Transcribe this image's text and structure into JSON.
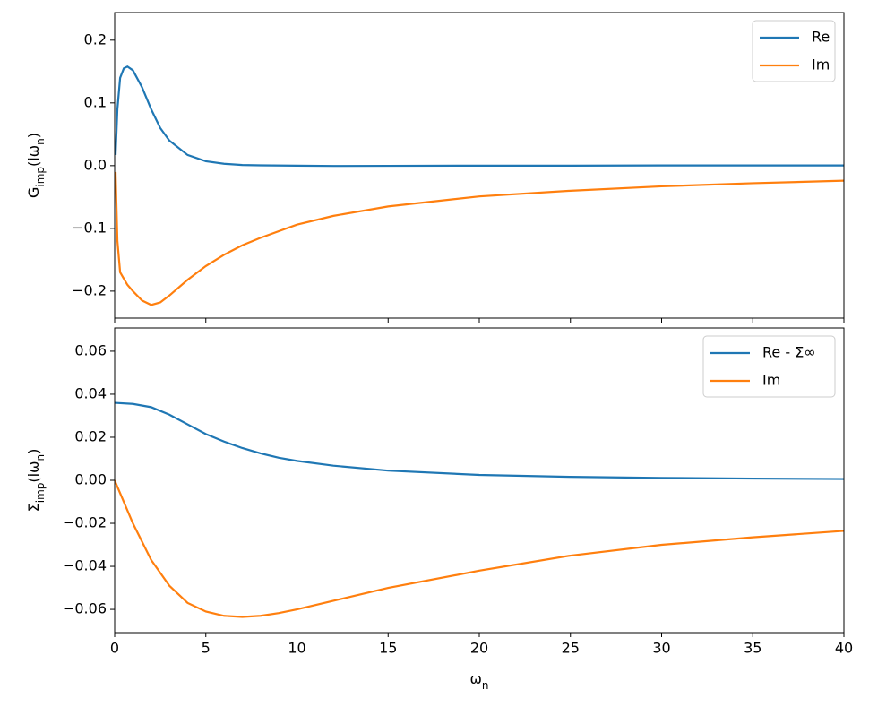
{
  "chart_data": [
    {
      "type": "line",
      "ylabel": [
        {
          "text": "G"
        },
        {
          "text": "imp",
          "sub": true
        },
        {
          "text": "(iω"
        },
        {
          "text": "n",
          "sub": true
        },
        {
          "text": ")"
        }
      ],
      "x": [
        0.05,
        0.15,
        0.3,
        0.5,
        0.7,
        1,
        1.5,
        2,
        2.5,
        3,
        4,
        5,
        6,
        7,
        8,
        10,
        12,
        15,
        20,
        25,
        30,
        35,
        40
      ],
      "series": [
        {
          "name": "Re",
          "color": "#1f77b4",
          "values": [
            0.017,
            0.09,
            0.14,
            0.155,
            0.158,
            0.152,
            0.125,
            0.09,
            0.06,
            0.04,
            0.017,
            0.007,
            0.003,
            0.001,
            0.0005,
            0,
            -0.0005,
            -0.0003,
            0,
            0,
            0.0003,
            0.0003,
            0.0003
          ]
        },
        {
          "name": "Im",
          "color": "#ff7f0e",
          "values": [
            -0.01,
            -0.12,
            -0.17,
            -0.18,
            -0.19,
            -0.2,
            -0.215,
            -0.222,
            -0.218,
            -0.207,
            -0.182,
            -0.16,
            -0.142,
            -0.127,
            -0.115,
            -0.094,
            -0.08,
            -0.065,
            -0.049,
            -0.04,
            -0.033,
            -0.028,
            -0.024
          ]
        }
      ],
      "xlim": [
        0,
        40
      ],
      "xticks": [
        0,
        5,
        10,
        15,
        20,
        25,
        30,
        35,
        40
      ],
      "xticklabels": false,
      "ylim": [
        -0.243,
        0.244
      ],
      "yticks": [
        {
          "value": -0.2,
          "label": "−0.2"
        },
        {
          "value": -0.1,
          "label": "−0.1"
        },
        {
          "value": 0,
          "label": "0.0"
        },
        0.1,
        0.2
      ],
      "legend": "upper right"
    },
    {
      "type": "line",
      "ylabel": [
        {
          "text": "Σ"
        },
        {
          "text": "imp",
          "sub": true
        },
        {
          "text": "(iω"
        },
        {
          "text": "n",
          "sub": true
        },
        {
          "text": ")"
        }
      ],
      "xlabel": [
        {
          "text": "ω"
        },
        {
          "text": "n",
          "sub": true
        }
      ],
      "x": [
        0,
        1,
        2,
        3,
        4,
        5,
        6,
        7,
        8,
        9,
        10,
        12,
        15,
        20,
        25,
        30,
        35,
        40
      ],
      "series": [
        {
          "name": "Re - Σ∞",
          "color": "#1f77b4",
          "values": [
            0.036,
            0.0355,
            0.034,
            0.0305,
            0.026,
            0.0215,
            0.018,
            0.015,
            0.0125,
            0.0105,
            0.009,
            0.0068,
            0.0045,
            0.0025,
            0.0016,
            0.0011,
            0.0008,
            0.0006
          ]
        },
        {
          "name": "Im",
          "color": "#ff7f0e",
          "values": [
            0,
            -0.02,
            -0.037,
            -0.049,
            -0.057,
            -0.061,
            -0.063,
            -0.0635,
            -0.063,
            -0.0617,
            -0.06,
            -0.056,
            -0.05,
            -0.042,
            -0.035,
            -0.03,
            -0.0265,
            -0.0235
          ]
        }
      ],
      "xlim": [
        0,
        40
      ],
      "xticks": [
        0,
        5,
        10,
        15,
        20,
        25,
        30,
        35,
        40
      ],
      "xticklabels": true,
      "ylim": [
        -0.0708,
        0.0708
      ],
      "yticks": [
        {
          "value": -0.06,
          "label": "−0.06"
        },
        {
          "value": -0.04,
          "label": "−0.04"
        },
        {
          "value": -0.02,
          "label": "−0.02"
        },
        {
          "value": 0,
          "label": "0.00"
        },
        {
          "value": 0.02,
          "label": "0.02"
        },
        {
          "value": 0.04,
          "label": "0.04"
        },
        {
          "value": 0.06,
          "label": "0.06"
        }
      ],
      "legend": "upper right"
    }
  ]
}
